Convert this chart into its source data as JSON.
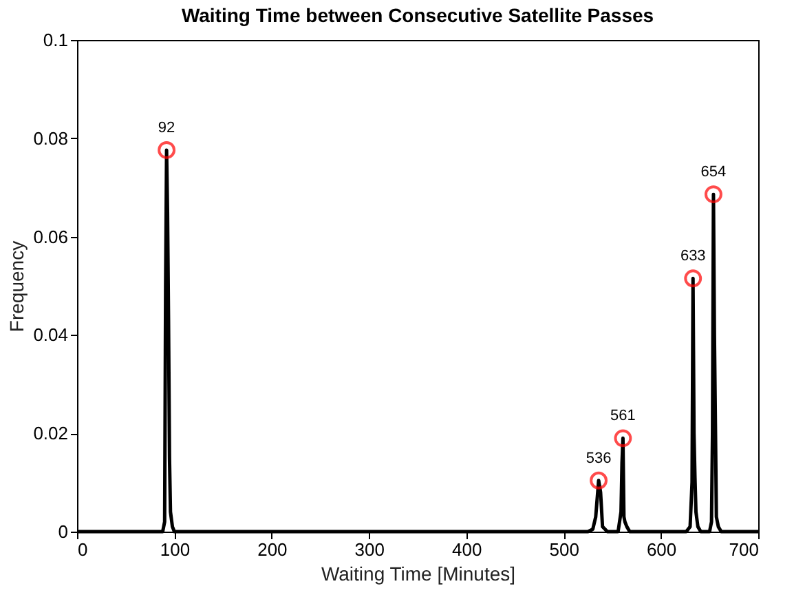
{
  "chart_data": {
    "type": "line",
    "title": "Waiting Time between Consecutive Satellite Passes",
    "xlabel": "Waiting Time [Minutes]",
    "ylabel": "Frequency",
    "xlim": [
      0,
      700
    ],
    "xticks": [
      0,
      100,
      200,
      300,
      400,
      500,
      600,
      700
    ],
    "ylim": [
      0,
      0.1
    ],
    "yticks": [
      0,
      0.02,
      0.04,
      0.06,
      0.08,
      0.1
    ],
    "grid": false,
    "series": [
      {
        "color": "#000000",
        "marker": "none",
        "x": [
          0,
          88,
          90,
          91,
          92,
          93,
          94,
          95,
          96,
          98,
          100,
          525,
          530,
          533,
          536,
          538,
          540,
          545,
          552,
          556,
          559,
          560,
          561,
          562,
          563,
          565,
          568,
          620,
          626,
          630,
          632,
          633,
          634,
          635,
          636,
          638,
          641,
          645,
          650,
          652,
          653,
          654,
          655,
          656,
          657,
          659,
          662,
          700
        ],
        "values": [
          0,
          0,
          0.002,
          0.05,
          0.0776,
          0.065,
          0.043,
          0.015,
          0.004,
          0.001,
          0,
          0,
          0.0005,
          0.003,
          0.0104,
          0.008,
          0.001,
          0,
          0,
          0,
          0.004,
          0.014,
          0.019,
          0.003,
          0.002,
          0.001,
          0,
          0,
          0,
          0.001,
          0.01,
          0.0515,
          0.02,
          0.011,
          0.004,
          0.001,
          0,
          0,
          0,
          0.002,
          0.02,
          0.0686,
          0.04,
          0.022,
          0.003,
          0.001,
          0,
          0
        ]
      },
      {
        "type": "scatter",
        "color": "#ff0000",
        "marker": "circle",
        "x": [
          92,
          536,
          561,
          633,
          654
        ],
        "values": [
          0.0776,
          0.0104,
          0.019,
          0.0515,
          0.0686
        ]
      }
    ],
    "annotations": [
      {
        "text": "92",
        "x": 92,
        "y": 0.0776
      },
      {
        "text": "536",
        "x": 536,
        "y": 0.0104
      },
      {
        "text": "561",
        "x": 561,
        "y": 0.019
      },
      {
        "text": "633",
        "x": 633,
        "y": 0.0515
      },
      {
        "text": "654",
        "x": 654,
        "y": 0.0686
      }
    ]
  }
}
